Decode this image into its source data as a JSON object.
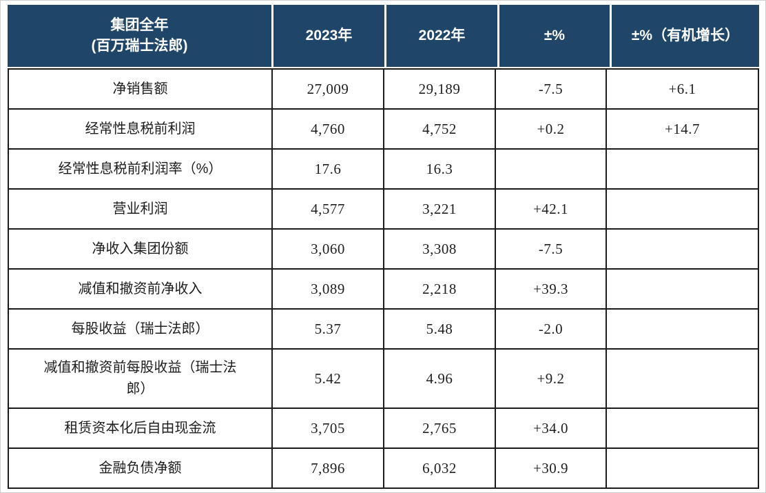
{
  "colors": {
    "header_bg": "#1f4568",
    "border": "#1b1b1b"
  },
  "chart_data": {
    "type": "table",
    "title": "集团全年 (百万瑞士法郎)",
    "columns": [
      "集团全年 (百万瑞士法郎)",
      "2023年",
      "2022年",
      "±%",
      "±%（有机增长）"
    ],
    "rows": [
      [
        "净销售额",
        "27,009",
        "29,189",
        "-7.5",
        "+6.1"
      ],
      [
        "经常性息税前利润",
        "4,760",
        "4,752",
        "+0.2",
        "+14.7"
      ],
      [
        "经常性息税前利润率（%）",
        "17.6",
        "16.3",
        "",
        ""
      ],
      [
        "营业利润",
        "4,577",
        "3,221",
        "+42.1",
        ""
      ],
      [
        "净收入集团份额",
        "3,060",
        "3,308",
        "-7.5",
        ""
      ],
      [
        "减值和撤资前净收入",
        "3,089",
        "2,218",
        "+39.3",
        ""
      ],
      [
        "每股收益（瑞士法郎）",
        "5.37",
        "5.48",
        "-2.0",
        ""
      ],
      [
        "减值和撤资前每股收益（瑞士法郎）",
        "5.42",
        "4.96",
        "+9.2",
        ""
      ],
      [
        "租赁资本化后自由现金流",
        "3,705",
        "2,765",
        "+34.0",
        ""
      ],
      [
        "金融负债净额",
        "7,896",
        "6,032",
        "+30.9",
        ""
      ]
    ]
  },
  "table": {
    "header": {
      "col0_line1": "集团全年",
      "col0_line2": "(百万瑞士法郎)",
      "col1": "2023年",
      "col2": "2022年",
      "col3": "±%",
      "col4": "±%（有机增长）"
    },
    "rows": [
      {
        "label": "净销售额",
        "values": [
          "27,009",
          "29,189",
          "-7.5",
          "+6.1"
        ]
      },
      {
        "label": "经常性息税前利润",
        "values": [
          "4,760",
          "4,752",
          "+0.2",
          "+14.7"
        ]
      },
      {
        "label": "经常性息税前利润率（%）",
        "values": [
          "17.6",
          "16.3",
          "",
          ""
        ]
      },
      {
        "label": "营业利润",
        "values": [
          "4,577",
          "3,221",
          "+42.1",
          ""
        ]
      },
      {
        "label": "净收入集团份额",
        "values": [
          "3,060",
          "3,308",
          "-7.5",
          ""
        ]
      },
      {
        "label": "减值和撤资前净收入",
        "values": [
          "3,089",
          "2,218",
          "+39.3",
          ""
        ]
      },
      {
        "label": "每股收益（瑞士法郎）",
        "values": [
          "5.37",
          "5.48",
          "-2.0",
          ""
        ]
      },
      {
        "label": "减值和撤资前每股收益（瑞士法\n郎）",
        "values": [
          "5.42",
          "4.96",
          "+9.2",
          ""
        ]
      },
      {
        "label": "租赁资本化后自由现金流",
        "values": [
          "3,705",
          "2,765",
          "+34.0",
          ""
        ]
      },
      {
        "label": "金融负债净额",
        "values": [
          "7,896",
          "6,032",
          "+30.9",
          ""
        ]
      }
    ]
  }
}
